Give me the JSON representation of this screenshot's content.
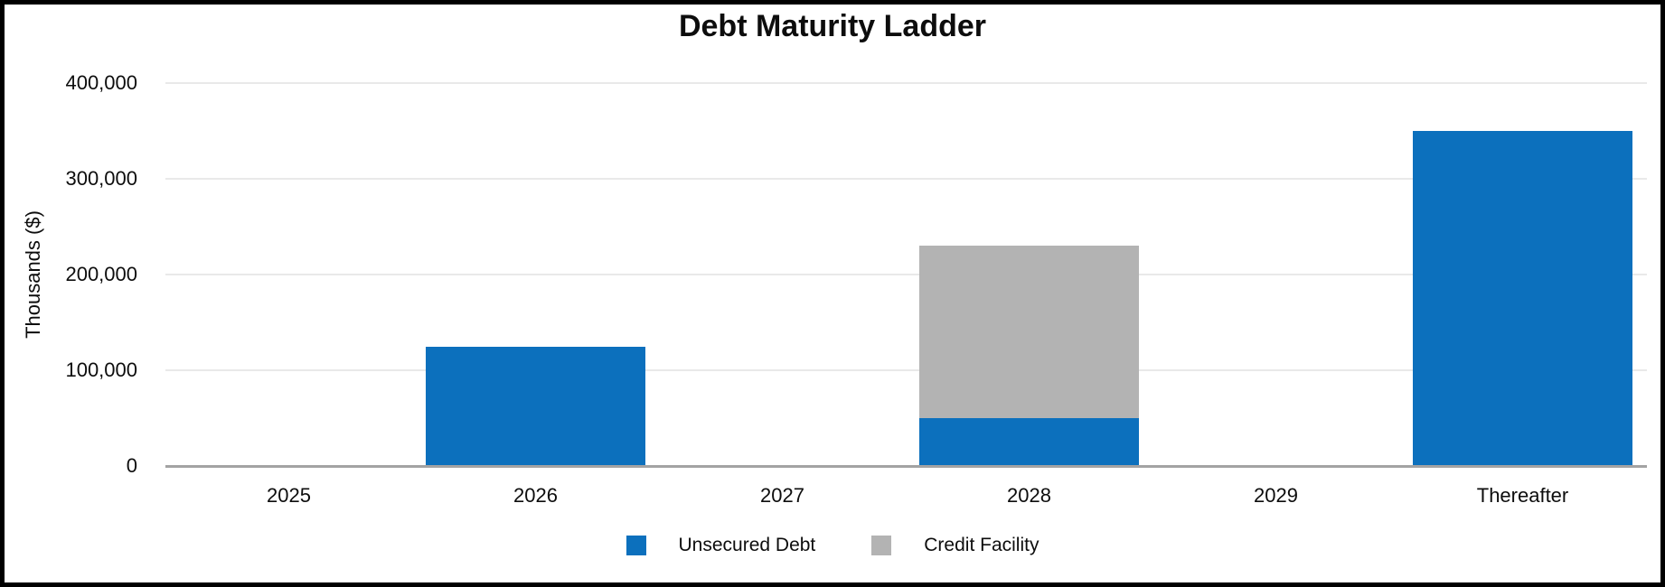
{
  "chart_data": {
    "type": "bar",
    "stacked": true,
    "title": "Debt Maturity Ladder",
    "ylabel": "Thousands ($)",
    "xlabel": "",
    "categories": [
      "2025",
      "2026",
      "2027",
      "2028",
      "2029",
      "Thereafter"
    ],
    "series": [
      {
        "name": "Unsecured Debt",
        "color": "#0c70bd",
        "values": [
          0,
          125000,
          0,
          50000,
          0,
          350000
        ]
      },
      {
        "name": "Credit Facility",
        "color": "#b3b3b3",
        "values": [
          0,
          0,
          0,
          180000,
          0,
          0
        ]
      }
    ],
    "ylim": [
      0,
      400000
    ],
    "y_ticks": [
      {
        "label": "0",
        "value": 0
      },
      {
        "label": "100,000",
        "value": 100000
      },
      {
        "label": "200,000",
        "value": 200000
      },
      {
        "label": "300,000",
        "value": 300000
      },
      {
        "label": "400,000",
        "value": 400000
      }
    ],
    "grid": "horizontal",
    "legend_position": "bottom"
  },
  "style": {
    "grid_color": "#e9e9e9",
    "axis_line_color": "#a3a3a3",
    "text_color": "#0d0d0d",
    "border_color": "#000000",
    "background": "#ffffff"
  }
}
